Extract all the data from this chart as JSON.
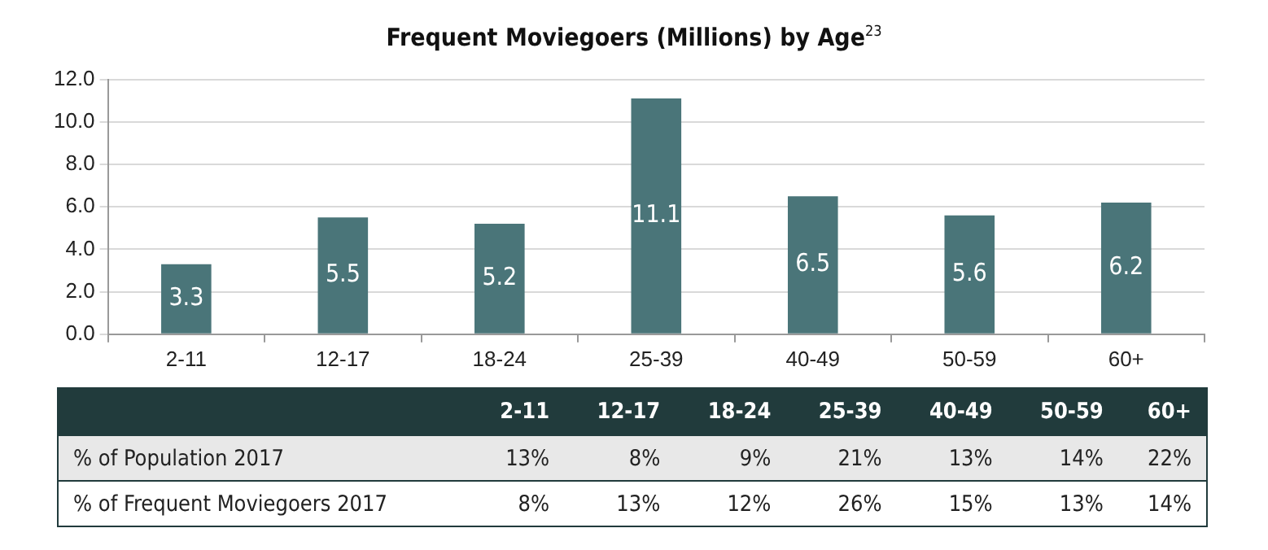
{
  "chart_data": [
    {
      "type": "bar",
      "title": "Frequent Moviegoers (Millions) by Age$^{23}$",
      "categories": [
        "2-11",
        "12-17",
        "18-24",
        "25-39",
        "40-49",
        "50-59",
        "60+"
      ],
      "values": [
        3.3,
        5.5,
        5.2,
        11.1,
        6.5,
        5.6,
        6.2
      ],
      "color": "#4a7579",
      "ylim": [
        0,
        12
      ],
      "yticks": [
        {
          "value": 0,
          "label": "0.0"
        },
        {
          "value": 2,
          "label": "2.0"
        },
        {
          "value": 4,
          "label": "4.0"
        },
        {
          "value": 6,
          "label": "6.0"
        },
        {
          "value": 8,
          "label": "8.0"
        },
        {
          "value": 10,
          "label": "10.0"
        },
        {
          "value": 12,
          "label": "12.0"
        }
      ],
      "grid": "y",
      "data_labels": true
    },
    {
      "type": "other",
      "categories": [
        "2-11",
        "12-17",
        "18-24",
        "25-39",
        "40-49",
        "50-59",
        "60+"
      ],
      "y_categories": [
        "% of Population 2017",
        "% of Frequent Moviegoers 2017"
      ],
      "cell_labels": [
        [
          "13%",
          "8%",
          "9%",
          "21%",
          "13%",
          "14%",
          "22%"
        ],
        [
          "8%",
          "13%",
          "12%",
          "26%",
          "15%",
          "13%",
          "14%"
        ]
      ]
    }
  ]
}
